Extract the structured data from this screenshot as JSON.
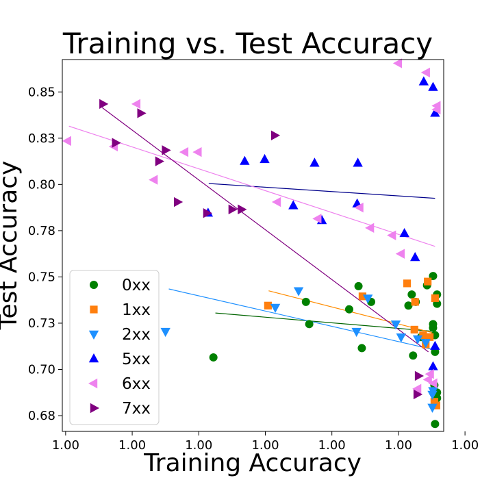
{
  "chart_data": {
    "type": "scatter",
    "title": "Training vs. Test Accuracy",
    "xlabel": "Training Accuracy",
    "ylabel": "Test Accuracy",
    "xlim": [
      0.99944,
      1.000013
    ],
    "ylim": [
      0.6665,
      0.8675
    ],
    "x_ticks": [
      0.9995,
      0.9996,
      0.9997,
      0.9998,
      0.9999,
      1.0
    ],
    "x_tick_labels": [
      "1.00",
      "1.00",
      "1.00",
      "1.00",
      "1.00",
      "1.00",
      "1.00"
    ],
    "x_tick_values": [
      0.999445,
      0.999545,
      0.999645,
      0.999745,
      0.999845,
      0.999945,
      1.000045
    ],
    "y_ticks": [
      0.675,
      0.7,
      0.725,
      0.75,
      0.775,
      0.8,
      0.825,
      0.85
    ],
    "y_tick_labels": [
      "0.68",
      "0.70",
      "0.73",
      "0.75",
      "0.78",
      "0.80",
      "0.83",
      "0.85"
    ],
    "legend": {
      "position": "lower-left"
    },
    "grid": false,
    "series": [
      {
        "name": "0xx",
        "marker": "circle",
        "color": "#008000",
        "points": [
          [
            0.999667,
            0.7065
          ],
          [
            0.999806,
            0.7365
          ],
          [
            0.999811,
            0.7245
          ],
          [
            0.999885,
            0.745
          ],
          [
            0.999871,
            0.7325
          ],
          [
            0.99989,
            0.7115
          ],
          [
            0.999904,
            0.7365
          ],
          [
            0.999967,
            0.7075
          ],
          [
            0.99996,
            0.7345
          ],
          [
            0.999965,
            0.7405
          ],
          [
            0.999971,
            0.7365
          ],
          [
            0.999988,
            0.7455
          ],
          [
            0.999979,
            0.7175
          ],
          [
            0.999997,
            0.7505
          ],
          [
            0.999997,
            0.7245
          ],
          [
            0.999997,
            0.7225
          ],
          [
            1.0,
            0.7185
          ],
          [
            1.0,
            0.7095
          ],
          [
            0.999999,
            0.6915
          ],
          [
            1.000003,
            0.6875
          ],
          [
            1.000003,
            0.6845
          ],
          [
            1.0,
            0.6705
          ],
          [
            1.000003,
            0.7405
          ],
          [
            1.000003,
            0.7355
          ]
        ]
      },
      {
        "name": "1xx",
        "marker": "square",
        "color": "#ff7f0e",
        "points": [
          [
            0.999749,
            0.7345
          ],
          [
            0.999891,
            0.7395
          ],
          [
            0.999958,
            0.7465
          ],
          [
            0.99997,
            0.7365
          ],
          [
            0.999969,
            0.7215
          ],
          [
            0.999982,
            0.7185
          ],
          [
            0.999986,
            0.7135
          ],
          [
            0.999989,
            0.7475
          ],
          [
            0.999992,
            0.7175
          ],
          [
            0.999999,
            0.6825
          ],
          [
            1.0,
            0.7385
          ],
          [
            1.000002,
            0.6805
          ]
        ]
      },
      {
        "name": "2xx",
        "marker": "triangle-down",
        "color": "#1e90ff",
        "points": [
          [
            0.999595,
            0.7205
          ],
          [
            0.99976,
            0.7335
          ],
          [
            0.999795,
            0.7425
          ],
          [
            0.999882,
            0.7205
          ],
          [
            0.999899,
            0.7385
          ],
          [
            0.999941,
            0.7245
          ],
          [
            0.999949,
            0.7175
          ],
          [
            0.999974,
            0.7165
          ],
          [
            0.999986,
            0.7145
          ],
          [
            0.999996,
            0.6865
          ],
          [
            0.999996,
            0.6795
          ],
          [
            0.999997,
            0.6885
          ]
        ]
      },
      {
        "name": "5xx",
        "marker": "triangle-up",
        "color": "#0000ff",
        "points": [
          [
            0.999659,
            0.7845
          ],
          [
            0.999714,
            0.8125
          ],
          [
            0.999744,
            0.8135
          ],
          [
            0.999787,
            0.7885
          ],
          [
            0.999819,
            0.8115
          ],
          [
            0.99983,
            0.7805
          ],
          [
            0.999883,
            0.7895
          ],
          [
            0.999884,
            0.8115
          ],
          [
            0.999954,
            0.7735
          ],
          [
            0.99997,
            0.7605
          ],
          [
            0.999983,
            0.8555
          ],
          [
            0.999997,
            0.8525
          ],
          [
            1.0,
            0.8385
          ],
          [
            1.0,
            0.7125
          ],
          [
            0.999997,
            0.7015
          ]
        ]
      },
      {
        "name": "6xx",
        "marker": "triangle-left",
        "color": "#ee82ee",
        "points": [
          [
            0.999448,
            0.8235
          ],
          [
            0.999518,
            0.8205
          ],
          [
            0.999552,
            0.8435
          ],
          [
            0.999578,
            0.8025
          ],
          [
            0.999624,
            0.8175
          ],
          [
            0.999644,
            0.8175
          ],
          [
            0.999763,
            0.7905
          ],
          [
            0.999824,
            0.7815
          ],
          [
            0.999887,
            0.7875
          ],
          [
            0.999903,
            0.7765
          ],
          [
            0.999936,
            0.7725
          ],
          [
            0.999945,
            0.8655
          ],
          [
            0.999949,
            0.7625
          ],
          [
            0.999987,
            0.8605
          ],
          [
            0.999974,
            0.6895
          ],
          [
            0.99999,
            0.6945
          ],
          [
            0.999993,
            0.6975
          ],
          [
            0.999998,
            0.6925
          ],
          [
            1.000003,
            0.8405
          ],
          [
            1.000003,
            0.8425
          ]
        ]
      },
      {
        "name": "7xx",
        "marker": "triangle-right",
        "color": "#800080",
        "points": [
          [
            0.999501,
            0.8435
          ],
          [
            0.99952,
            0.8225
          ],
          [
            0.999558,
            0.8385
          ],
          [
            0.999585,
            0.8125
          ],
          [
            0.999595,
            0.8185
          ],
          [
            0.999613,
            0.7905
          ],
          [
            0.999657,
            0.7845
          ],
          [
            0.999695,
            0.7865
          ],
          [
            0.999709,
            0.7865
          ],
          [
            0.999759,
            0.8265
          ],
          [
            0.999973,
            0.6865
          ],
          [
            0.999975,
            0.6965
          ]
        ]
      }
    ],
    "trendlines": [
      {
        "series": "0xx",
        "color": "#006400",
        "x": [
          0.99967,
          1.0
        ],
        "y": [
          0.7305,
          0.7205
        ]
      },
      {
        "series": "1xx",
        "color": "#ff8c00",
        "x": [
          0.99975,
          1.0
        ],
        "y": [
          0.7425,
          0.7195
        ]
      },
      {
        "series": "2xx",
        "color": "#1e90ff",
        "x": [
          0.9996,
          1.0
        ],
        "y": [
          0.7435,
          0.7105
        ]
      },
      {
        "series": "5xx",
        "color": "#00008b",
        "x": [
          0.99966,
          1.0
        ],
        "y": [
          0.8005,
          0.7925
        ]
      },
      {
        "series": "6xx",
        "color": "#ee82ee",
        "x": [
          0.99945,
          1.0
        ],
        "y": [
          0.8315,
          0.7665
        ]
      },
      {
        "series": "7xx",
        "color": "#800080",
        "x": [
          0.9995,
          0.99999
        ],
        "y": [
          0.8415,
          0.7095
        ]
      }
    ]
  }
}
